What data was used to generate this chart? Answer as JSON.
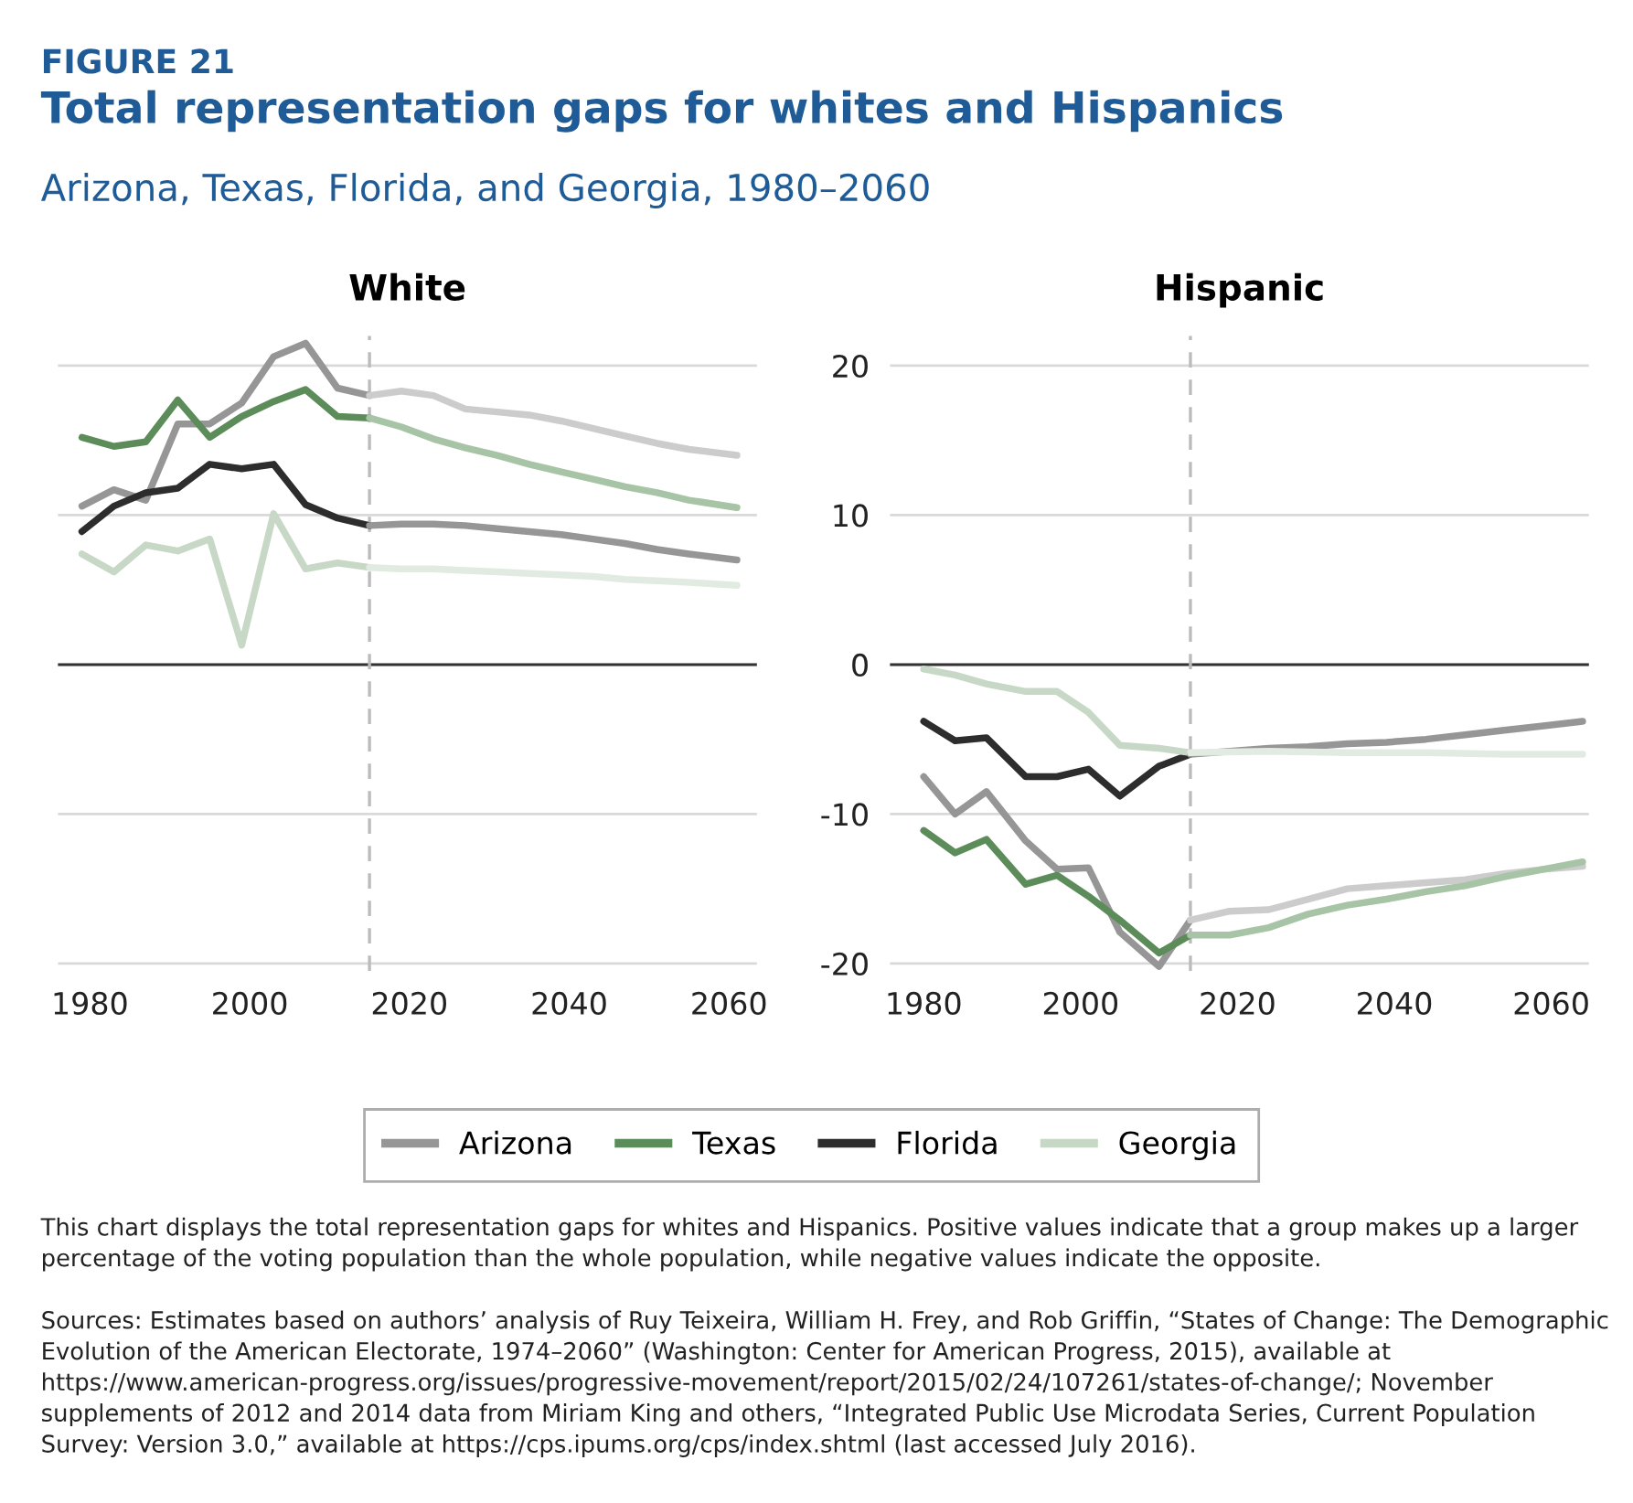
{
  "chart_data": [
    {
      "type": "other",
      "title": "Total representation gaps for whites and Hispanics",
      "subtitle": "Arizona, Texas, Florida, and Georgia, 1980–2060",
      "annotations": [
        "FIGURE 21",
        "This chart displays the total representation gaps for whites and Hispanics. Positive values indicate that a group makes up a larger percentage of the voting population than the whole population, while negative values indicate the opposite.",
        "Sources: Estimates based on authors’ analysis of Ruy Teixeira, William H. Frey, and Rob Griffin, “States of Change: The Demographic Evolution of the American Electorate, 1974–2060” (Washington: Center for American Progress, 2015), available at https://www.american-progress.org/issues/progressive-movement/report/2015/02/24/107261/states-of-change/; November supplements of 2012 and 2014 data from Miriam King and others, “Integrated Public Use Microdata Series, Current Population Survey: Version 3.0,” available at https://cps.ipums.org/cps/index.shtml (last accessed July 2016)."
      ]
    },
    {
      "type": "line",
      "title": "White",
      "xlim": [
        1976,
        2063.5
      ],
      "xticks": [
        1980,
        2000,
        2020,
        2040,
        2060
      ],
      "ylim": [
        -20.5,
        22
      ],
      "yticks": [
        -20,
        -10,
        0,
        10,
        20
      ],
      "grid": "y",
      "tick_labels": "x",
      "legend": "bottom",
      "ref_lines": [
        {
          "axis": "y",
          "value": 0,
          "color": "#333333",
          "line_style": "solid"
        },
        {
          "axis": "x",
          "value": 2015,
          "color": "#bbbbbb",
          "line_style": "dashed"
        }
      ],
      "series": [
        {
          "name": "Arizona",
          "color": "#969696",
          "x": [
            1979,
            1983,
            1987,
            1991,
            1995,
            1999,
            2003,
            2007,
            2011,
            2015
          ],
          "values": [
            10.6,
            11.7,
            11.0,
            16.1,
            16.1,
            17.5,
            20.6,
            21.5,
            18.5,
            18.0
          ]
        },
        {
          "name": "Texas",
          "color": "#5b8c5a",
          "x": [
            1979,
            1983,
            1987,
            1991,
            1995,
            1999,
            2003,
            2007,
            2011,
            2015
          ],
          "values": [
            15.2,
            14.6,
            14.9,
            17.7,
            15.2,
            16.6,
            17.6,
            18.4,
            16.6,
            16.5
          ]
        },
        {
          "name": "Florida",
          "color": "#2d2d2d",
          "x": [
            1979,
            1983,
            1987,
            1991,
            1995,
            1999,
            2003,
            2007,
            2011,
            2015
          ],
          "values": [
            8.9,
            10.6,
            11.5,
            11.8,
            13.4,
            13.1,
            13.4,
            10.7,
            9.8,
            9.3
          ]
        },
        {
          "name": "Georgia",
          "color": "#c8d8c6",
          "x": [
            1979,
            1983,
            1987,
            1991,
            1995,
            1999,
            2003,
            2007,
            2011,
            2015
          ],
          "values": [
            7.4,
            6.2,
            8.0,
            7.6,
            8.4,
            1.3,
            10.1,
            6.4,
            6.8,
            6.5
          ]
        },
        {
          "color": "#cccccc",
          "x": [
            2015,
            2019,
            2023,
            2027,
            2031,
            2035,
            2039,
            2043,
            2047,
            2051,
            2055,
            2061
          ],
          "values": [
            18.0,
            18.3,
            18.0,
            17.1,
            16.9,
            16.7,
            16.3,
            15.8,
            15.3,
            14.8,
            14.4,
            14.0
          ]
        },
        {
          "color": "#a8c4a6",
          "x": [
            2015,
            2019,
            2023,
            2027,
            2031,
            2035,
            2039,
            2043,
            2047,
            2051,
            2055,
            2061
          ],
          "values": [
            16.5,
            15.9,
            15.1,
            14.5,
            14.0,
            13.4,
            12.9,
            12.4,
            11.9,
            11.5,
            11.0,
            10.5
          ]
        },
        {
          "color": "#969696",
          "x": [
            2015,
            2019,
            2023,
            2027,
            2031,
            2035,
            2039,
            2043,
            2047,
            2051,
            2055,
            2061
          ],
          "values": [
            9.3,
            9.4,
            9.4,
            9.3,
            9.1,
            8.9,
            8.7,
            8.4,
            8.1,
            7.7,
            7.4,
            7.0
          ]
        },
        {
          "color": "#e2ebe1",
          "x": [
            2015,
            2019,
            2023,
            2027,
            2031,
            2035,
            2039,
            2043,
            2047,
            2051,
            2055,
            2061
          ],
          "values": [
            6.5,
            6.4,
            6.4,
            6.3,
            6.2,
            6.1,
            6.0,
            5.9,
            5.7,
            5.6,
            5.5,
            5.3
          ]
        }
      ]
    },
    {
      "type": "line",
      "title": "Hispanic",
      "xlim": [
        1975.7,
        2064.8
      ],
      "xticks": [
        1980,
        2000,
        2020,
        2040,
        2060
      ],
      "ylim": [
        -20.5,
        22
      ],
      "yticks": [
        -20,
        -10,
        0,
        10,
        20
      ],
      "grid": "y",
      "ref_lines": [
        {
          "axis": "y",
          "value": 0,
          "color": "#333333",
          "line_style": "solid"
        },
        {
          "axis": "x",
          "value": 2014,
          "color": "#bbbbbb",
          "line_style": "dashed"
        }
      ],
      "series": [
        {
          "color": "#969696",
          "x": [
            1980,
            1984,
            1988,
            1993,
            1997,
            2001,
            2005,
            2010,
            2014
          ],
          "values": [
            -7.5,
            -10.0,
            -8.5,
            -11.8,
            -13.7,
            -13.6,
            -17.9,
            -20.2,
            -17.1
          ]
        },
        {
          "color": "#5b8c5a",
          "x": [
            1980,
            1984,
            1988,
            1993,
            1997,
            2001,
            2005,
            2010,
            2014
          ],
          "values": [
            -11.1,
            -12.6,
            -11.7,
            -14.7,
            -14.1,
            -15.5,
            -17.1,
            -19.3,
            -18.1
          ]
        },
        {
          "color": "#2d2d2d",
          "x": [
            1980,
            1984,
            1988,
            1993,
            1997,
            2001,
            2005,
            2010,
            2014
          ],
          "values": [
            -3.8,
            -5.1,
            -4.9,
            -7.5,
            -7.5,
            -7.0,
            -8.8,
            -6.8,
            -6.0
          ]
        },
        {
          "color": "#c8d8c6",
          "x": [
            1980,
            1984,
            1988,
            1993,
            1997,
            2001,
            2005,
            2010,
            2014
          ],
          "values": [
            -0.3,
            -0.7,
            -1.3,
            -1.8,
            -1.8,
            -3.2,
            -5.4,
            -5.6,
            -5.9
          ]
        },
        {
          "color": "#cccccc",
          "x": [
            2014,
            2019,
            2024,
            2029,
            2034,
            2039,
            2044,
            2049,
            2054,
            2059,
            2064
          ],
          "values": [
            -17.1,
            -16.5,
            -16.4,
            -15.7,
            -15.0,
            -14.8,
            -14.6,
            -14.4,
            -14.0,
            -13.7,
            -13.5
          ]
        },
        {
          "color": "#a8c4a6",
          "x": [
            2014,
            2019,
            2024,
            2029,
            2034,
            2039,
            2044,
            2049,
            2054,
            2059,
            2064
          ],
          "values": [
            -18.1,
            -18.1,
            -17.6,
            -16.7,
            -16.1,
            -15.7,
            -15.2,
            -14.8,
            -14.2,
            -13.7,
            -13.2
          ]
        },
        {
          "color": "#969696",
          "x": [
            2014,
            2019,
            2024,
            2029,
            2034,
            2039,
            2044,
            2049,
            2054,
            2059,
            2064
          ],
          "values": [
            -6.0,
            -5.8,
            -5.6,
            -5.5,
            -5.3,
            -5.2,
            -5.0,
            -4.7,
            -4.4,
            -4.1,
            -3.8
          ]
        },
        {
          "color": "#e2ebe1",
          "x": [
            2014,
            2024,
            2034,
            2044,
            2054,
            2064
          ],
          "values": [
            -5.9,
            -5.8,
            -5.9,
            -5.9,
            -6.0,
            -6.0
          ]
        }
      ]
    }
  ]
}
